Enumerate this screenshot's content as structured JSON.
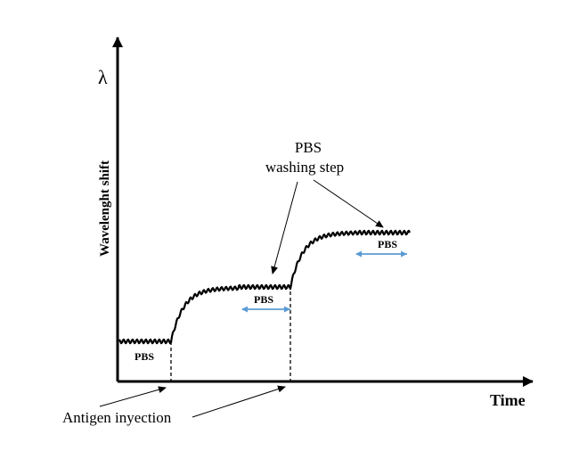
{
  "axes": {
    "y_symbol": "λ",
    "y_label": "Wavelenght shift",
    "x_label": "Time"
  },
  "annotations": {
    "pbs_title": "PBS",
    "washing_step": "washing step",
    "antigen_injection": "Antigen inyection"
  },
  "segments": {
    "baseline_label": "PBS",
    "wash1_label": "PBS",
    "wash2_label": "PBS"
  },
  "colors": {
    "curve": "#000000",
    "double_arrow": "#5b9bd5",
    "axis": "#000000"
  }
}
